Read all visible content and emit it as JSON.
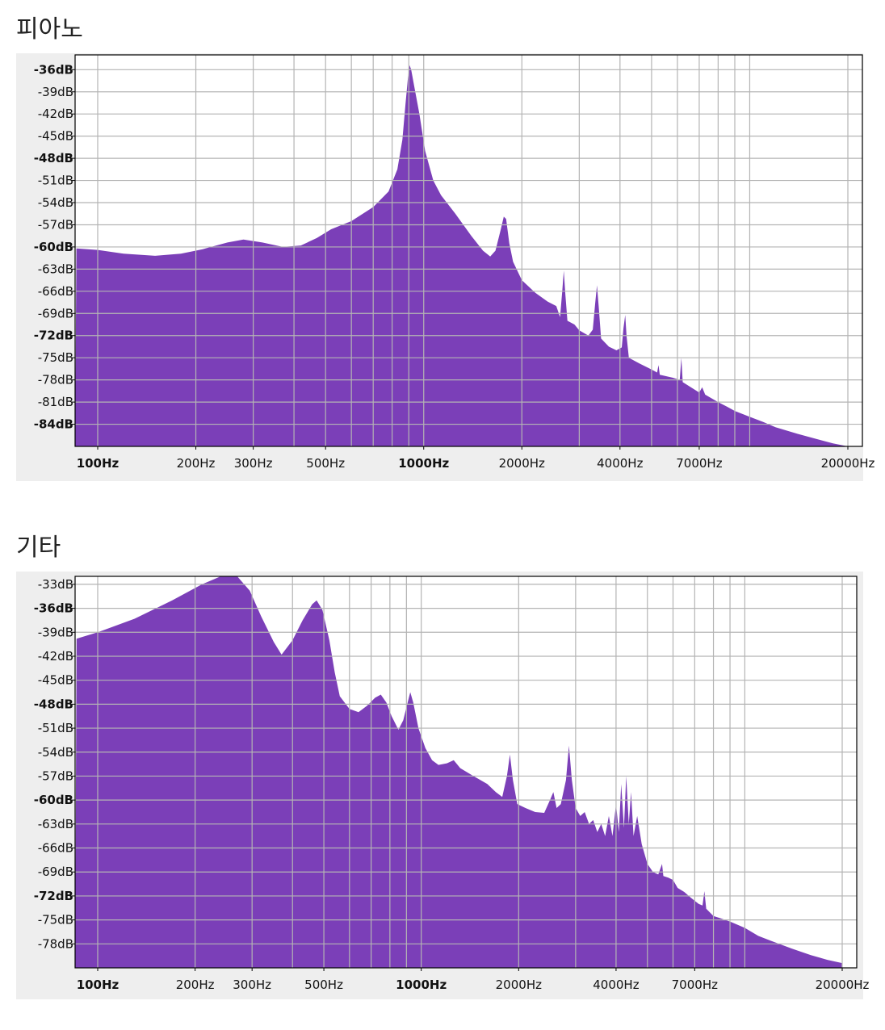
{
  "sections": [
    {
      "title": "피아노"
    },
    {
      "title": "기타"
    }
  ],
  "colors": {
    "fill": "#7b3fb8",
    "grid": "#b4b4b4",
    "panel": "#eeeeee"
  },
  "chart_data": [
    {
      "type": "area",
      "title": "피아노",
      "xscale": "log",
      "xlim": [
        100,
        20000
      ],
      "ylim": [
        -87,
        -34
      ],
      "x_ticks": [
        {
          "label": "100Hz",
          "value": 100,
          "bold": true
        },
        {
          "label": "200Hz",
          "value": 200,
          "bold": false
        },
        {
          "label": "300Hz",
          "value": 300,
          "bold": false
        },
        {
          "label": "500Hz",
          "value": 500,
          "bold": false
        },
        {
          "label": "1000Hz",
          "value": 1000,
          "bold": true
        },
        {
          "label": "2000Hz",
          "value": 2000,
          "bold": false
        },
        {
          "label": "4000Hz",
          "value": 4000,
          "bold": false
        },
        {
          "label": "7000Hz",
          "value": 7000,
          "bold": false
        },
        {
          "label": "20000Hz",
          "value": 20000,
          "bold": false
        }
      ],
      "x_grid": [
        100,
        200,
        300,
        400,
        500,
        600,
        700,
        800,
        900,
        1000,
        2000,
        3000,
        4000,
        5000,
        6000,
        7000,
        8000,
        9000,
        10000,
        20000
      ],
      "y_ticks": [
        {
          "label": "-36dB",
          "value": -36,
          "bold": true
        },
        {
          "label": "-39dB",
          "value": -39,
          "bold": false
        },
        {
          "label": "-42dB",
          "value": -42,
          "bold": false
        },
        {
          "label": "-45dB",
          "value": -45,
          "bold": false
        },
        {
          "label": "-48dB",
          "value": -48,
          "bold": true
        },
        {
          "label": "-51dB",
          "value": -51,
          "bold": false
        },
        {
          "label": "-54dB",
          "value": -54,
          "bold": false
        },
        {
          "label": "-57dB",
          "value": -57,
          "bold": false
        },
        {
          "label": "-60dB",
          "value": -60,
          "bold": true
        },
        {
          "label": "-63dB",
          "value": -63,
          "bold": false
        },
        {
          "label": "-66dB",
          "value": -66,
          "bold": false
        },
        {
          "label": "-69dB",
          "value": -69,
          "bold": false
        },
        {
          "label": "-72dB",
          "value": -72,
          "bold": true
        },
        {
          "label": "-75dB",
          "value": -75,
          "bold": false
        },
        {
          "label": "-78dB",
          "value": -78,
          "bold": false
        },
        {
          "label": "-81dB",
          "value": -81,
          "bold": false
        },
        {
          "label": "-84dB",
          "value": -84,
          "bold": true
        }
      ],
      "points": [
        [
          86,
          -60.2
        ],
        [
          100,
          -60.4
        ],
        [
          120,
          -60.9
        ],
        [
          150,
          -61.2
        ],
        [
          180,
          -60.9
        ],
        [
          210,
          -60.3
        ],
        [
          250,
          -59.4
        ],
        [
          280,
          -59.0
        ],
        [
          320,
          -59.4
        ],
        [
          370,
          -60.0
        ],
        [
          420,
          -59.8
        ],
        [
          470,
          -58.8
        ],
        [
          520,
          -57.6
        ],
        [
          600,
          -56.5
        ],
        [
          700,
          -54.6
        ],
        [
          780,
          -52.5
        ],
        [
          830,
          -49.5
        ],
        [
          860,
          -45.5
        ],
        [
          880,
          -40.5
        ],
        [
          895,
          -37.0
        ],
        [
          905,
          -35.4
        ],
        [
          915,
          -36.0
        ],
        [
          935,
          -38.2
        ],
        [
          970,
          -42.0
        ],
        [
          1010,
          -47.0
        ],
        [
          1070,
          -51.0
        ],
        [
          1130,
          -53.0
        ],
        [
          1250,
          -55.5
        ],
        [
          1400,
          -58.5
        ],
        [
          1520,
          -60.5
        ],
        [
          1600,
          -61.3
        ],
        [
          1660,
          -60.5
        ],
        [
          1720,
          -57.8
        ],
        [
          1760,
          -55.9
        ],
        [
          1790,
          -56.2
        ],
        [
          1830,
          -59.5
        ],
        [
          1880,
          -62.0
        ],
        [
          2000,
          -64.5
        ],
        [
          2200,
          -66.2
        ],
        [
          2400,
          -67.4
        ],
        [
          2550,
          -68.0
        ],
        [
          2620,
          -69.5
        ],
        [
          2660,
          -66.0
        ],
        [
          2690,
          -63.2
        ],
        [
          2720,
          -66.5
        ],
        [
          2760,
          -70.0
        ],
        [
          2900,
          -70.5
        ],
        [
          3000,
          -71.3
        ],
        [
          3200,
          -72.0
        ],
        [
          3300,
          -71.2
        ],
        [
          3360,
          -67.5
        ],
        [
          3400,
          -65.2
        ],
        [
          3440,
          -68.0
        ],
        [
          3500,
          -72.4
        ],
        [
          3700,
          -73.5
        ],
        [
          3900,
          -74.0
        ],
        [
          4050,
          -73.6
        ],
        [
          4100,
          -71.0
        ],
        [
          4150,
          -69.2
        ],
        [
          4190,
          -72.0
        ],
        [
          4260,
          -75.0
        ],
        [
          4600,
          -75.8
        ],
        [
          5000,
          -76.6
        ],
        [
          5200,
          -77.0
        ],
        [
          5250,
          -76.0
        ],
        [
          5300,
          -77.3
        ],
        [
          5800,
          -77.7
        ],
        [
          6100,
          -78.0
        ],
        [
          6170,
          -75.0
        ],
        [
          6230,
          -78.3
        ],
        [
          6600,
          -79.0
        ],
        [
          7000,
          -79.7
        ],
        [
          7150,
          -79.0
        ],
        [
          7300,
          -80.0
        ],
        [
          8000,
          -81.0
        ],
        [
          8500,
          -81.6
        ],
        [
          9000,
          -82.2
        ],
        [
          10000,
          -83.0
        ],
        [
          11000,
          -83.7
        ],
        [
          12000,
          -84.4
        ],
        [
          14000,
          -85.3
        ],
        [
          16000,
          -86.0
        ],
        [
          18000,
          -86.6
        ],
        [
          20000,
          -87.0
        ]
      ]
    },
    {
      "type": "area",
      "title": "기타",
      "xscale": "log",
      "xlim": [
        100,
        20000
      ],
      "ylim": [
        -81,
        -32
      ],
      "x_ticks": [
        {
          "label": "100Hz",
          "value": 100,
          "bold": true
        },
        {
          "label": "200Hz",
          "value": 200,
          "bold": false
        },
        {
          "label": "300Hz",
          "value": 300,
          "bold": false
        },
        {
          "label": "500Hz",
          "value": 500,
          "bold": false
        },
        {
          "label": "1000Hz",
          "value": 1000,
          "bold": true
        },
        {
          "label": "2000Hz",
          "value": 2000,
          "bold": false
        },
        {
          "label": "4000Hz",
          "value": 4000,
          "bold": false
        },
        {
          "label": "7000Hz",
          "value": 7000,
          "bold": false
        },
        {
          "label": "20000Hz",
          "value": 20000,
          "bold": false
        }
      ],
      "x_grid": [
        100,
        200,
        300,
        400,
        500,
        600,
        700,
        800,
        900,
        1000,
        2000,
        3000,
        4000,
        5000,
        6000,
        7000,
        8000,
        9000,
        10000,
        20000
      ],
      "y_ticks": [
        {
          "label": "-33dB",
          "value": -33,
          "bold": false
        },
        {
          "label": "-36dB",
          "value": -36,
          "bold": true
        },
        {
          "label": "-39dB",
          "value": -39,
          "bold": false
        },
        {
          "label": "-42dB",
          "value": -42,
          "bold": false
        },
        {
          "label": "-45dB",
          "value": -45,
          "bold": false
        },
        {
          "label": "-48dB",
          "value": -48,
          "bold": true
        },
        {
          "label": "-51dB",
          "value": -51,
          "bold": false
        },
        {
          "label": "-54dB",
          "value": -54,
          "bold": false
        },
        {
          "label": "-57dB",
          "value": -57,
          "bold": false
        },
        {
          "label": "-60dB",
          "value": -60,
          "bold": true
        },
        {
          "label": "-63dB",
          "value": -63,
          "bold": false
        },
        {
          "label": "-66dB",
          "value": -66,
          "bold": false
        },
        {
          "label": "-69dB",
          "value": -69,
          "bold": false
        },
        {
          "label": "-72dB",
          "value": -72,
          "bold": true
        },
        {
          "label": "-75dB",
          "value": -75,
          "bold": false
        },
        {
          "label": "-78dB",
          "value": -78,
          "bold": false
        }
      ],
      "points": [
        [
          86,
          -39.8
        ],
        [
          100,
          -39.0
        ],
        [
          130,
          -37.3
        ],
        [
          170,
          -35.0
        ],
        [
          210,
          -33.0
        ],
        [
          240,
          -32.0
        ],
        [
          270,
          -32.0
        ],
        [
          295,
          -33.8
        ],
        [
          320,
          -37.0
        ],
        [
          350,
          -40.2
        ],
        [
          370,
          -41.8
        ],
        [
          400,
          -40.0
        ],
        [
          430,
          -37.5
        ],
        [
          460,
          -35.5
        ],
        [
          475,
          -35.0
        ],
        [
          495,
          -36.2
        ],
        [
          520,
          -40.0
        ],
        [
          540,
          -44.0
        ],
        [
          560,
          -47.0
        ],
        [
          600,
          -48.6
        ],
        [
          640,
          -49.0
        ],
        [
          680,
          -48.2
        ],
        [
          720,
          -47.2
        ],
        [
          750,
          -46.8
        ],
        [
          780,
          -47.8
        ],
        [
          810,
          -49.5
        ],
        [
          850,
          -51.2
        ],
        [
          880,
          -50.0
        ],
        [
          905,
          -48.0
        ],
        [
          925,
          -46.5
        ],
        [
          945,
          -47.8
        ],
        [
          980,
          -51.0
        ],
        [
          1030,
          -53.5
        ],
        [
          1080,
          -55.0
        ],
        [
          1130,
          -55.6
        ],
        [
          1200,
          -55.4
        ],
        [
          1260,
          -55.0
        ],
        [
          1320,
          -56.0
        ],
        [
          1450,
          -57.0
        ],
        [
          1600,
          -58.0
        ],
        [
          1700,
          -59.0
        ],
        [
          1780,
          -59.6
        ],
        [
          1840,
          -57.0
        ],
        [
          1880,
          -54.3
        ],
        [
          1920,
          -57.5
        ],
        [
          1980,
          -60.5
        ],
        [
          2100,
          -61.0
        ],
        [
          2250,
          -61.5
        ],
        [
          2400,
          -61.6
        ],
        [
          2500,
          -60.0
        ],
        [
          2560,
          -59.0
        ],
        [
          2620,
          -61.0
        ],
        [
          2700,
          -60.5
        ],
        [
          2800,
          -57.5
        ],
        [
          2860,
          -53.2
        ],
        [
          2920,
          -57.5
        ],
        [
          3000,
          -61.0
        ],
        [
          3100,
          -62.0
        ],
        [
          3200,
          -61.5
        ],
        [
          3300,
          -63.0
        ],
        [
          3400,
          -62.5
        ],
        [
          3500,
          -64.0
        ],
        [
          3600,
          -63.0
        ],
        [
          3700,
          -64.5
        ],
        [
          3800,
          -62.0
        ],
        [
          3900,
          -64.5
        ],
        [
          4000,
          -60.5
        ],
        [
          4080,
          -64.0
        ],
        [
          4150,
          -58.0
        ],
        [
          4230,
          -63.5
        ],
        [
          4300,
          -57.0
        ],
        [
          4380,
          -63.0
        ],
        [
          4450,
          -59.0
        ],
        [
          4530,
          -64.5
        ],
        [
          4650,
          -62.0
        ],
        [
          4800,
          -65.5
        ],
        [
          5000,
          -68.0
        ],
        [
          5200,
          -69.0
        ],
        [
          5400,
          -69.3
        ],
        [
          5550,
          -68.0
        ],
        [
          5600,
          -69.5
        ],
        [
          5800,
          -69.7
        ],
        [
          6000,
          -70.0
        ],
        [
          6200,
          -71.0
        ],
        [
          6500,
          -71.5
        ],
        [
          6800,
          -72.2
        ],
        [
          7000,
          -72.6
        ],
        [
          7200,
          -73.0
        ],
        [
          7400,
          -73.2
        ],
        [
          7500,
          -71.4
        ],
        [
          7600,
          -73.6
        ],
        [
          8000,
          -74.5
        ],
        [
          9000,
          -75.2
        ],
        [
          10000,
          -76.0
        ],
        [
          11000,
          -77.0
        ],
        [
          12000,
          -77.6
        ],
        [
          14000,
          -78.6
        ],
        [
          16000,
          -79.4
        ],
        [
          18000,
          -80.0
        ],
        [
          20000,
          -80.4
        ]
      ]
    }
  ]
}
